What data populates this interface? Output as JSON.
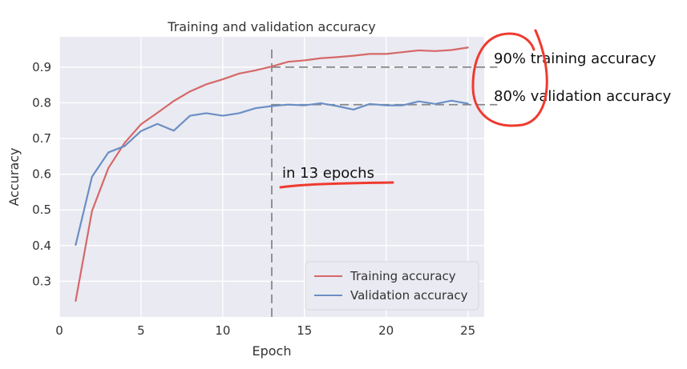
{
  "chart_data": {
    "type": "line",
    "title": "Training and validation accuracy",
    "xlabel": "Epoch",
    "ylabel": "Accuracy",
    "xlim": [
      0,
      26
    ],
    "ylim": [
      0.2,
      0.985
    ],
    "x_ticks": [
      0,
      5,
      10,
      15,
      20,
      25
    ],
    "y_ticks": [
      0.3,
      0.4,
      0.5,
      0.6,
      0.7,
      0.8,
      0.9
    ],
    "grid": true,
    "legend_position": "bottom-right",
    "x": [
      1,
      2,
      3,
      4,
      5,
      6,
      7,
      8,
      9,
      10,
      11,
      12,
      13,
      14,
      15,
      16,
      17,
      18,
      19,
      20,
      21,
      22,
      23,
      24,
      25
    ],
    "series": [
      {
        "name": "Training accuracy",
        "color": "#d66868",
        "values": [
          0.245,
          0.497,
          0.617,
          0.688,
          0.74,
          0.772,
          0.805,
          0.832,
          0.852,
          0.866,
          0.882,
          0.891,
          0.902,
          0.915,
          0.919,
          0.925,
          0.928,
          0.932,
          0.937,
          0.937,
          0.942,
          0.947,
          0.945,
          0.948,
          0.955
        ]
      },
      {
        "name": "Validation accuracy",
        "color": "#6a8fc4",
        "values": [
          0.402,
          0.593,
          0.661,
          0.679,
          0.721,
          0.741,
          0.722,
          0.764,
          0.771,
          0.764,
          0.771,
          0.785,
          0.791,
          0.795,
          0.793,
          0.799,
          0.791,
          0.781,
          0.797,
          0.793,
          0.793,
          0.804,
          0.797,
          0.806,
          0.798
        ]
      }
    ],
    "reference_lines": {
      "vertical_x": 13,
      "horizontal_y": [
        0.9,
        0.795
      ],
      "horizontal_x_end": 26.8,
      "color": "#888888"
    },
    "annotations": [
      {
        "text": "90% training accuracy",
        "value": 0.9
      },
      {
        "text": "80% validation accuracy",
        "value": 0.795
      },
      {
        "text": "in 13 epochs",
        "value": 13
      }
    ],
    "annotation_ink_color": "#ef3a2f"
  },
  "colors": {
    "plot_background": "#eaeaf2",
    "grid": "#ffffff",
    "legend_background": "#eaeaf2",
    "legend_border": "#d5d5dd"
  }
}
